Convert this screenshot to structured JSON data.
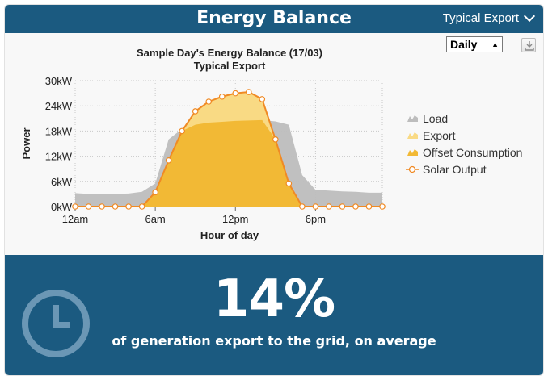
{
  "header": {
    "title": "Energy Balance",
    "profile": "Typical Export"
  },
  "controls": {
    "period": "Daily"
  },
  "colors": {
    "header_bg": "#1b5a80",
    "load": "#bdbdbd",
    "export": "#f9da84",
    "offset": "#f2b935",
    "solar_line": "#f08a24"
  },
  "chart_data": {
    "type": "area",
    "title": "Sample Day's Energy Balance (17/03)",
    "subtitle": "Typical Export",
    "xlabel": "Hour of day",
    "ylabel": "Power",
    "xlim": [
      0,
      23
    ],
    "ylim": [
      0,
      30
    ],
    "x_ticks": [
      0,
      6,
      12,
      18
    ],
    "x_tick_labels": [
      "12am",
      "6am",
      "12pm",
      "6pm"
    ],
    "y_ticks": [
      0,
      6,
      12,
      18,
      24,
      30
    ],
    "y_tick_labels": [
      "0kW",
      "6kW",
      "12kW",
      "18kW",
      "24kW",
      "30kW"
    ],
    "grid": true,
    "legend_position": "right",
    "x": [
      0,
      1,
      2,
      3,
      4,
      5,
      6,
      7,
      8,
      9,
      10,
      11,
      12,
      13,
      14,
      15,
      16,
      17,
      18,
      19,
      20,
      21,
      22,
      23
    ],
    "series": [
      {
        "name": "Load",
        "values": [
          3.2,
          3.0,
          3.0,
          3.0,
          3.1,
          3.5,
          5.5,
          16.0,
          18.5,
          19.5,
          20.0,
          20.2,
          20.4,
          20.5,
          20.6,
          20.3,
          19.5,
          7.5,
          4.0,
          3.8,
          3.6,
          3.5,
          3.3,
          3.3
        ]
      },
      {
        "name": "Export",
        "values": [
          0,
          0,
          0,
          0,
          0,
          0,
          0,
          0,
          0,
          3.2,
          5.0,
          6.0,
          6.6,
          6.8,
          5.0,
          0,
          0,
          0,
          0,
          0,
          0,
          0,
          0,
          0
        ]
      },
      {
        "name": "Offset Consumption",
        "values": [
          0,
          0,
          0,
          0,
          0,
          0,
          3.4,
          11.0,
          18.0,
          19.5,
          20.0,
          20.2,
          20.4,
          20.5,
          20.6,
          16.0,
          5.5,
          0,
          0,
          0,
          0,
          0,
          0,
          0
        ]
      },
      {
        "name": "Solar Output",
        "values": [
          0,
          0,
          0,
          0,
          0,
          0,
          3.4,
          11.0,
          18.0,
          22.7,
          25.0,
          26.2,
          27.0,
          27.3,
          25.6,
          16.0,
          5.5,
          0,
          0,
          0,
          0,
          0,
          0,
          0
        ]
      }
    ]
  },
  "summary": {
    "value": "14%",
    "caption": "of generation export to the grid, on average"
  }
}
